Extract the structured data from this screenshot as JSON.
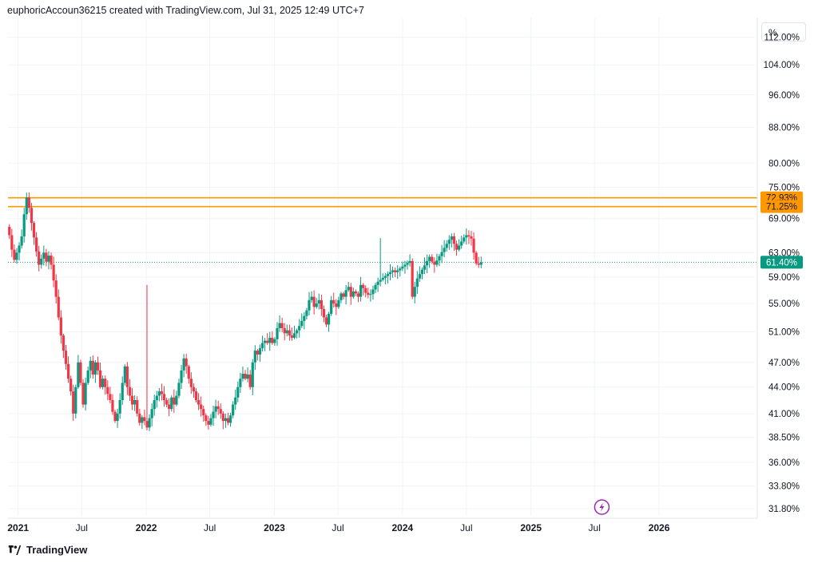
{
  "header": {
    "title": "euphoricAccoun36215 created with TradingView.com, Jul 31, 2025 12:49 UTC+7"
  },
  "footer": {
    "brand": "TradingView"
  },
  "scale": {
    "unit": "%"
  },
  "colors": {
    "up": "#089981",
    "down": "#f23645",
    "level": "#ff9800",
    "last": "#089981",
    "grid": "#f0f3fa",
    "event": "#9c27b0"
  },
  "icons": {
    "event": "lightning-icon",
    "logo": "tradingview-logo-icon"
  },
  "chart_data": {
    "type": "candlestick",
    "title": "",
    "y_ticks": [
      31.8,
      33.8,
      36.0,
      38.5,
      41.0,
      44.0,
      47.0,
      51.0,
      55.0,
      59.0,
      63.0,
      69.0,
      75.0,
      80.0,
      88.0,
      96.0,
      104.0,
      112.0
    ],
    "y_tick_labels": [
      "31.80%",
      "33.80%",
      "36.00%",
      "38.50%",
      "41.00%",
      "44.00%",
      "47.00%",
      "51.00%",
      "55.00%",
      "59.00%",
      "63.00%",
      "69.00%",
      "75.00%",
      "80.00%",
      "88.00%",
      "96.00%",
      "104.00%",
      "112.00%"
    ],
    "ylim": [
      31.2,
      118.0
    ],
    "y_scale": "log",
    "xlim": [
      "2020-12-03",
      "2026-10-01"
    ],
    "x_ticks": [
      {
        "date": "2021-01-01",
        "label": "2021",
        "bold": true
      },
      {
        "date": "2021-07-01",
        "label": "Jul",
        "bold": false
      },
      {
        "date": "2022-01-01",
        "label": "2022",
        "bold": true
      },
      {
        "date": "2022-07-01",
        "label": "Jul",
        "bold": false
      },
      {
        "date": "2023-01-01",
        "label": "2023",
        "bold": true
      },
      {
        "date": "2023-07-01",
        "label": "Jul",
        "bold": false
      },
      {
        "date": "2024-01-01",
        "label": "2024",
        "bold": true
      },
      {
        "date": "2024-07-01",
        "label": "Jul",
        "bold": false
      },
      {
        "date": "2025-01-01",
        "label": "2025",
        "bold": true
      },
      {
        "date": "2025-07-01",
        "label": "Jul",
        "bold": false
      },
      {
        "date": "2026-01-01",
        "label": "2026",
        "bold": true
      }
    ],
    "horizontal_levels": [
      {
        "value": 72.93,
        "label": "72.93%"
      },
      {
        "value": 71.25,
        "label": "71.25%"
      }
    ],
    "last_price": {
      "value": 61.4,
      "label": "61.40%"
    },
    "event_marker_date": "2025-07-22",
    "candle_start": "2020-12-07",
    "candle_interval": "weekly",
    "closes": [
      66.0,
      63.5,
      61.8,
      63.0,
      64.2,
      65.8,
      69.8,
      73.0,
      71.0,
      68.2,
      65.6,
      63.2,
      61.0,
      62.0,
      63.0,
      61.5,
      62.5,
      61.0,
      58.5,
      56.0,
      53.0,
      50.5,
      48.5,
      46.8,
      45.0,
      43.5,
      41.0,
      44.0,
      47.0,
      44.5,
      42.0,
      44.5,
      46.0,
      47.2,
      45.5,
      47.0,
      46.0,
      44.0,
      45.0,
      44.0,
      43.2,
      42.5,
      41.2,
      40.2,
      41.0,
      42.5,
      44.5,
      46.5,
      44.0,
      43.0,
      42.0,
      42.5,
      41.0,
      40.0,
      40.6,
      40.2,
      39.5,
      40.5,
      41.5,
      42.5,
      43.0,
      43.5,
      43.2,
      42.5,
      42.0,
      41.5,
      42.8,
      42.0,
      43.0,
      44.5,
      46.0,
      47.5,
      46.5,
      45.0,
      44.0,
      43.5,
      42.5,
      42.0,
      41.5,
      40.8,
      40.2,
      39.8,
      40.5,
      41.2,
      41.8,
      41.5,
      41.0,
      40.2,
      40.5,
      40.0,
      40.8,
      42.0,
      42.8,
      44.0,
      45.0,
      45.6,
      45.0,
      45.5,
      44.0,
      47.0,
      48.5,
      48.0,
      48.8,
      49.5,
      49.8,
      49.5,
      50.2,
      49.5,
      50.0,
      51.5,
      52.2,
      51.5,
      50.8,
      51.2,
      50.5,
      50.2,
      50.8,
      51.2,
      51.8,
      52.5,
      53.2,
      54.0,
      55.5,
      56.0,
      54.5,
      55.0,
      55.5,
      54.2,
      53.0,
      52.0,
      53.5,
      55.5,
      55.0,
      54.5,
      55.5,
      56.5,
      56.0,
      57.0,
      57.5,
      56.0,
      56.8,
      56.5,
      56.0,
      57.8,
      57.3,
      56.6,
      56.3,
      56.4,
      57.1,
      57.8,
      58.3,
      58.6,
      58.9,
      59.2,
      59.5,
      59.8,
      60.1,
      59.8,
      60.1,
      60.4,
      60.7,
      61.0,
      61.3,
      61.6,
      56.0,
      57.5,
      58.8,
      59.5,
      60.2,
      60.9,
      61.6,
      62.3,
      61.5,
      61.0,
      61.7,
      62.4,
      63.1,
      63.8,
      64.5,
      65.2,
      65.8,
      64.5,
      63.5,
      64.2,
      64.9,
      65.6,
      66.0,
      65.8,
      65.4,
      63.0,
      61.2,
      61.0,
      61.4
    ],
    "wicks": [
      [
        56.0,
        54.2,
        57.8
      ],
      [
        151.0,
        58.5,
        65.5
      ]
    ]
  }
}
